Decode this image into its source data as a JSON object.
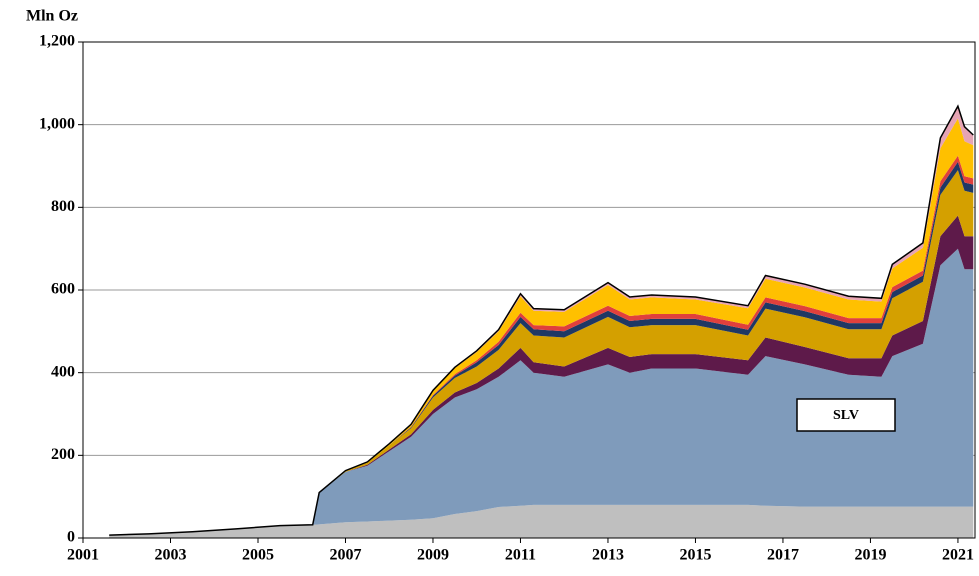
{
  "chart_data": {
    "type": "stacked_area",
    "y_label": "Mln Oz",
    "x": [
      2001.6,
      2002.5,
      2003.5,
      2004.5,
      2005.5,
      2006.25,
      2006.4,
      2007,
      2007.5,
      2008,
      2008.5,
      2009,
      2009.5,
      2010,
      2010.5,
      2011,
      2011.3,
      2012,
      2013,
      2013.5,
      2014,
      2015,
      2016.2,
      2016.6,
      2017.5,
      2018.5,
      2019.25,
      2019.5,
      2020.2,
      2020.6,
      2021,
      2021.15,
      2021.35
    ],
    "series": [
      {
        "color": "#bfbfbf",
        "values": [
          7,
          10,
          15,
          22,
          30,
          32,
          33,
          38,
          40,
          42,
          44,
          48,
          58,
          65,
          75,
          78,
          80,
          80,
          80,
          80,
          80,
          80,
          80,
          78,
          76,
          76,
          76,
          76,
          76,
          76,
          76,
          76,
          76
        ]
      },
      {
        "name": "SLV",
        "color": "#7f9bbb",
        "values": [
          0,
          0,
          0,
          0,
          0,
          0,
          77,
          122,
          135,
          168,
          201,
          252,
          282,
          295,
          315,
          352,
          320,
          310,
          340,
          320,
          330,
          330,
          315,
          362,
          344,
          319,
          314,
          364,
          394,
          584,
          624,
          574,
          574
        ]
      },
      {
        "color": "#5e1a4a",
        "values": [
          0,
          0,
          0,
          0,
          0,
          0,
          0,
          0,
          2,
          4,
          6,
          10,
          12,
          15,
          20,
          30,
          25,
          25,
          40,
          38,
          35,
          35,
          35,
          45,
          42,
          40,
          45,
          50,
          55,
          70,
          80,
          80,
          80
        ]
      },
      {
        "color": "#d4a000",
        "values": [
          0,
          0,
          0,
          0,
          0,
          0,
          0,
          3,
          5,
          10,
          15,
          30,
          35,
          40,
          45,
          60,
          65,
          70,
          75,
          72,
          70,
          70,
          60,
          70,
          72,
          70,
          70,
          90,
          95,
          100,
          110,
          110,
          105
        ]
      },
      {
        "color": "#1f3864",
        "values": [
          0,
          0,
          0,
          0,
          0,
          0,
          0,
          0,
          0,
          0,
          2,
          4,
          6,
          10,
          12,
          15,
          15,
          15,
          15,
          15,
          15,
          15,
          14,
          15,
          15,
          15,
          15,
          15,
          15,
          18,
          20,
          20,
          20
        ]
      },
      {
        "color": "#e0403c",
        "values": [
          0,
          0,
          0,
          0,
          0,
          0,
          0,
          0,
          0,
          0,
          1,
          2,
          3,
          5,
          8,
          10,
          10,
          12,
          12,
          12,
          12,
          12,
          12,
          12,
          12,
          12,
          12,
          12,
          12,
          15,
          15,
          15,
          15
        ]
      },
      {
        "color": "#ffc000",
        "values": [
          0,
          0,
          0,
          0,
          0,
          0,
          0,
          0,
          2,
          4,
          6,
          10,
          15,
          20,
          25,
          40,
          35,
          35,
          50,
          40,
          40,
          35,
          40,
          45,
          45,
          45,
          40,
          45,
          55,
          80,
          90,
          85,
          80
        ]
      },
      {
        "color": "#e6a4b4",
        "values": [
          0,
          0,
          0,
          0,
          0,
          0,
          0,
          0,
          0,
          0,
          0,
          1,
          2,
          3,
          4,
          6,
          5,
          5,
          6,
          6,
          6,
          6,
          6,
          8,
          8,
          8,
          8,
          10,
          12,
          25,
          30,
          35,
          25
        ]
      }
    ],
    "xlim": [
      2001,
      2021.39
    ],
    "xticks": [
      2001,
      2003,
      2005,
      2007,
      2009,
      2011,
      2013,
      2015,
      2017,
      2019,
      2021
    ],
    "ylim": [
      0,
      1200
    ],
    "yticks": [
      0,
      200,
      400,
      600,
      800,
      {
        "value": 1000,
        "label": "1,000"
      },
      {
        "value": 1200,
        "label": "1,200"
      }
    ],
    "grid": true
  }
}
